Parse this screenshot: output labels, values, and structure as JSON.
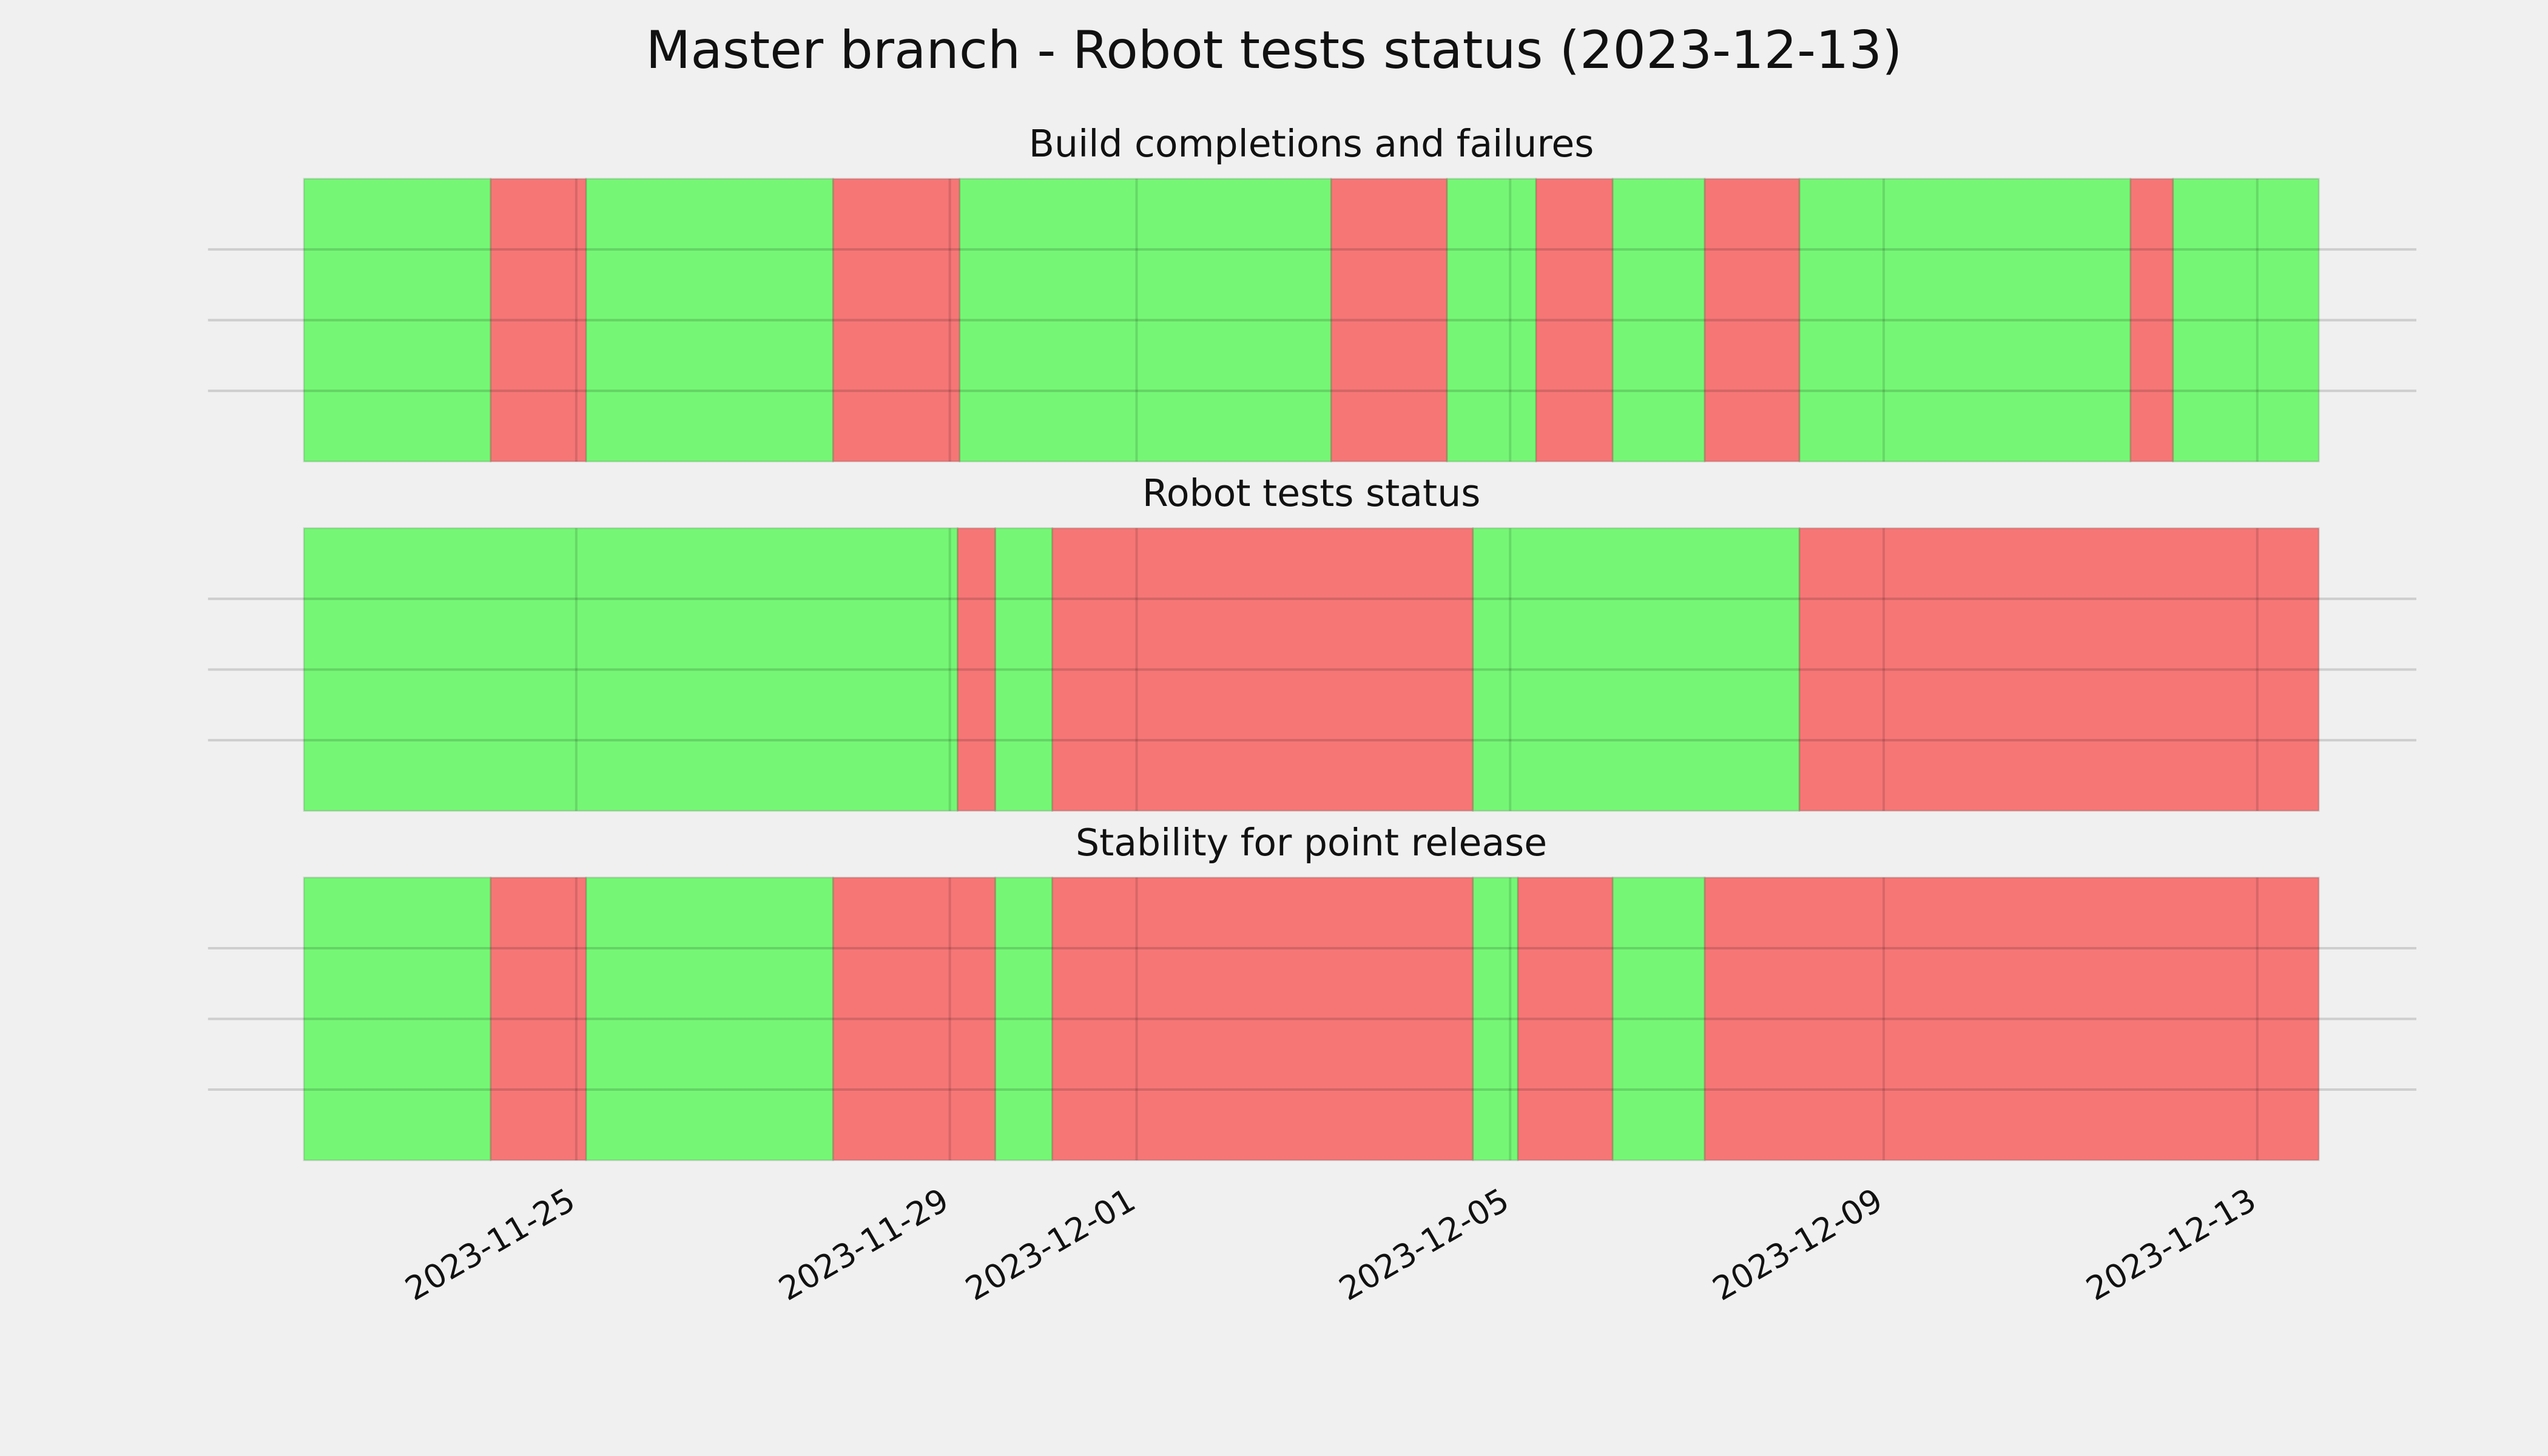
{
  "title": "Master branch - Robot tests status (2023-12-13)",
  "chart_data": [
    {
      "type": "timeline",
      "title": "Build completions and failures",
      "xlim": [
        "2023-11-22 02:00",
        "2023-12-13 15:50"
      ],
      "xticks": [
        "2023-11-25",
        "2023-11-29",
        "2023-12-01",
        "2023-12-05",
        "2023-12-09",
        "2023-12-13"
      ],
      "ylim": [
        0,
        1
      ],
      "yticks": [
        0.25,
        0.5,
        0.75
      ],
      "grid": true,
      "series": [
        {
          "color": "#75f775",
          "start": [
            "2023-11-22 02:00",
            "2023-11-25 02:30",
            "2023-11-29 02:30",
            "2023-12-04 07:45",
            "2023-12-06 02:20",
            "2023-12-08 02:20",
            "2023-12-12 02:20"
          ],
          "end": [
            "2023-11-24 02:00",
            "2023-11-27 18:00",
            "2023-12-03 02:00",
            "2023-12-05 06:40",
            "2023-12-07 02:00",
            "2023-12-11 15:25",
            "2023-12-13 15:50"
          ]
        },
        {
          "color": "#f67676",
          "start": [
            "2023-11-24 02:00",
            "2023-11-27 18:00",
            "2023-12-03 02:00",
            "2023-12-05 06:40",
            "2023-12-07 02:00",
            "2023-12-11 15:25"
          ],
          "end": [
            "2023-11-25 02:30",
            "2023-11-29 02:30",
            "2023-12-04 07:45",
            "2023-12-06 02:20",
            "2023-12-08 02:20",
            "2023-12-12 02:20"
          ]
        }
      ]
    },
    {
      "type": "timeline",
      "title": "Robot tests status",
      "xlim": [
        "2023-11-22 02:00",
        "2023-12-13 15:50"
      ],
      "xticks": [
        "2023-11-25",
        "2023-11-29",
        "2023-12-01",
        "2023-12-05",
        "2023-12-09",
        "2023-12-13"
      ],
      "ylim": [
        0,
        1
      ],
      "yticks": [
        0.25,
        0.5,
        0.75
      ],
      "grid": true,
      "series": [
        {
          "color": "#75f775",
          "start": [
            "2023-11-22 02:00",
            "2023-11-29 11:40",
            "2023-12-04 14:25"
          ],
          "end": [
            "2023-11-29 02:00",
            "2023-11-30 02:20",
            "2023-12-08 02:20"
          ]
        },
        {
          "color": "#f67676",
          "start": [
            "2023-11-29 02:00",
            "2023-11-30 02:20",
            "2023-12-08 02:20"
          ],
          "end": [
            "2023-11-29 11:40",
            "2023-12-04 14:25",
            "2023-12-13 15:50"
          ]
        }
      ]
    },
    {
      "type": "timeline",
      "title": "Stability for point release",
      "xlim": [
        "2023-11-22 02:00",
        "2023-12-13 15:50"
      ],
      "xticks": [
        "2023-11-25",
        "2023-11-29",
        "2023-12-01",
        "2023-12-05",
        "2023-12-09",
        "2023-12-13"
      ],
      "ylim": [
        0,
        1
      ],
      "yticks": [
        0.25,
        0.5,
        0.75
      ],
      "grid": true,
      "series": [
        {
          "color": "#75f775",
          "start": [
            "2023-11-22 02:00",
            "2023-11-25 02:30",
            "2023-11-29 11:40",
            "2023-12-04 14:25",
            "2023-12-06 02:20"
          ],
          "end": [
            "2023-11-24 02:00",
            "2023-11-27 18:00",
            "2023-11-30 02:20",
            "2023-12-05 02:00",
            "2023-12-07 02:00"
          ]
        },
        {
          "color": "#f67676",
          "start": [
            "2023-11-24 02:00",
            "2023-11-27 18:00",
            "2023-11-30 02:20",
            "2023-12-05 02:00",
            "2023-12-07 02:00"
          ],
          "end": [
            "2023-11-25 02:30",
            "2023-11-29 11:40",
            "2023-12-04 14:25",
            "2023-12-06 02:20",
            "2023-12-13 15:50"
          ]
        }
      ]
    }
  ]
}
